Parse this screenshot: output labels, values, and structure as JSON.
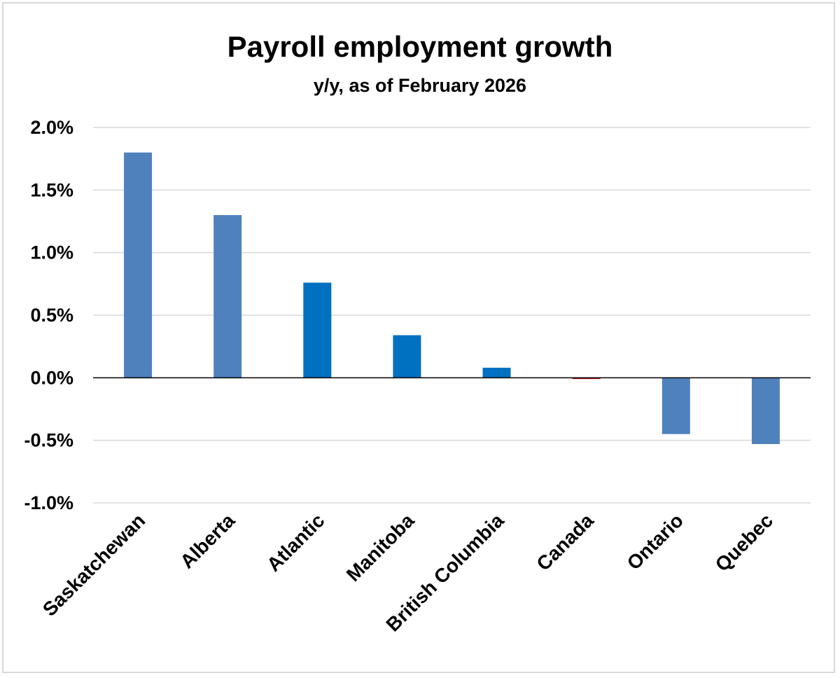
{
  "chart_data": {
    "type": "bar",
    "title": "Payroll employment growth",
    "subtitle": "y/y, as of February 2026",
    "xlabel": "",
    "ylabel": "",
    "ylim": [
      -1.0,
      2.0
    ],
    "yticks": [
      2.0,
      1.5,
      1.0,
      0.5,
      0.0,
      -0.5,
      -1.0
    ],
    "ytick_labels": [
      "2.0%",
      "1.5%",
      "1.0%",
      "0.5%",
      "0.0%",
      "-0.5%",
      "-1.0%"
    ],
    "grid": true,
    "categories": [
      "Saskatchewan",
      "Alberta",
      "Atlantic",
      "Manitoba",
      "British Columbia",
      "Canada",
      "Ontario",
      "Quebec"
    ],
    "values": [
      1.8,
      1.3,
      0.76,
      0.34,
      0.08,
      -0.01,
      -0.45,
      -0.53
    ],
    "colors": [
      "#4f81bd",
      "#4f81bd",
      "#0070c0",
      "#0070c0",
      "#0070c0",
      "#c00000",
      "#4f81bd",
      "#4f81bd"
    ]
  }
}
